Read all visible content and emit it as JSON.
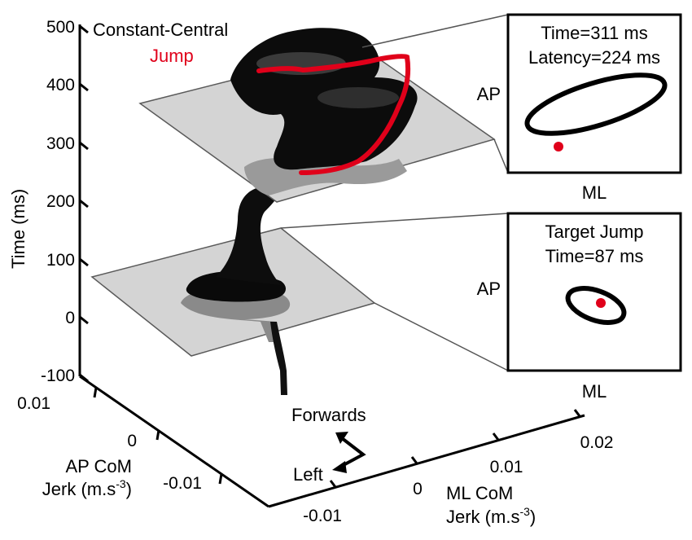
{
  "chart_data": [
    {
      "type": "surface3d",
      "title": "",
      "legend": [
        {
          "name": "Constant-Central",
          "color": "#000000"
        },
        {
          "name": "Jump",
          "color": "#e0001a"
        }
      ],
      "axes": {
        "z": {
          "label": "Time (ms)",
          "ticks": [
            500,
            400,
            300,
            200,
            100,
            0,
            -100
          ],
          "range": [
            -100,
            500
          ]
        },
        "ap": {
          "label_line1": "AP CoM",
          "label_line2": "Jerk (m.s",
          "label_sup": "-3",
          "label_end": ")",
          "ticks": [
            "0.01",
            "0",
            "-0.01"
          ]
        },
        "ml": {
          "label_line1": "ML CoM",
          "label_line2": "Jerk (m.s",
          "label_sup": "-3",
          "label_end": ")",
          "ticks": [
            "-0.01",
            "0",
            "0.01",
            "0.02"
          ]
        }
      },
      "slices_time_ms": [
        87,
        311
      ],
      "direction_labels": {
        "forwards": "Forwards",
        "left": "Left"
      }
    },
    {
      "type": "inset",
      "lines": [
        "Time=311 ms",
        "Latency=224 ms"
      ],
      "xlabel": "ML",
      "ylabel": "AP",
      "ellipse_color": "#000000",
      "point_color": "#e0001a"
    },
    {
      "type": "inset",
      "lines": [
        "Target Jump",
        "Time=87 ms"
      ],
      "xlabel": "ML",
      "ylabel": "AP",
      "ellipse_color": "#000000",
      "point_color": "#e0001a"
    }
  ]
}
